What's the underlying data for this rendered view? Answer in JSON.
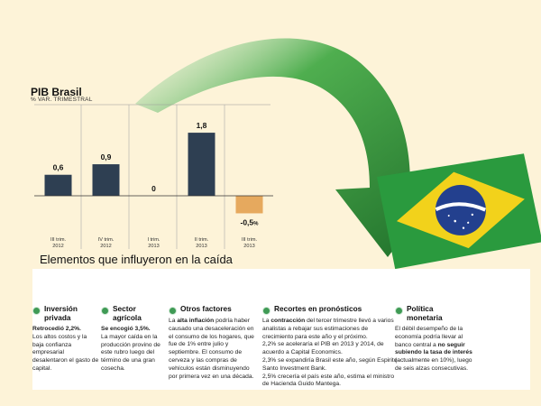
{
  "chart": {
    "title": "PIB Brasil",
    "subtitle": "% VAR. TRIMESTRAL"
  },
  "chart_data": {
    "type": "bar",
    "title": "PIB Brasil",
    "subtitle": "% VAR. TRIMESTRAL",
    "categories": [
      {
        "line1": "III trim.",
        "line2": "2012"
      },
      {
        "line1": "IV trim.",
        "line2": "2012"
      },
      {
        "line1": "I trim.",
        "line2": "2013"
      },
      {
        "line1": "II trim.",
        "line2": "2013"
      },
      {
        "line1": "III trim.",
        "line2": "2013"
      }
    ],
    "values": [
      0.6,
      0.9,
      0,
      1.8,
      -0.5
    ],
    "labels": [
      "0,6",
      "0,9",
      "0",
      "1,8",
      "-0,5"
    ],
    "unit_suffix": "%",
    "ylim": [
      -0.9,
      2.6
    ],
    "grid": false,
    "colors": {
      "positive": "#2e3f52",
      "negative": "#e6a95e",
      "baseline": "#333333"
    }
  },
  "section_title": "Elementos que influyeron en la caída",
  "factors": [
    {
      "icon": "dollar-icon",
      "name": [
        "Inversión",
        "privada"
      ],
      "lead": "Retrocedió 2,2%.",
      "text": "Los altos costos y la baja confianza empresarial desalentaron el gasto de capital."
    },
    {
      "icon": "wheat-icon",
      "name": [
        "Sector",
        "agrícola"
      ],
      "lead": "Se encogió 3,5%.",
      "text": "La mayor caída en la producción provino de este rubro luego del término de una gran cosecha."
    },
    {
      "icon": "shopping-cart-icon",
      "name": [
        "Otros factores"
      ],
      "lead_pre": "La",
      "lead": "alta inflación",
      "text": "podría haber causado una desaceleración en el consumo de los hogares, que fue de 1% entre julio y septiembre. El consumo de cerveza y las compras de vehículos están disminuyendo por primera vez en una década."
    },
    {
      "icon": "down-arrows-icon",
      "name": [
        "Recortes en pronósticos"
      ],
      "lead_pre": "La",
      "lead": "contracción",
      "text": "del tercer trimestre llevó a varios analistas a rebajar sus estimaciones de crecimiento para este año y el próximo.",
      "extra": [
        "2,2% se aceleraría el PIB en 2013 y 2014, de acuerdo a Capital Economics.",
        "2,3% se expandiría Brasil este año, según Espirito Santo Investment Bank.",
        "2,5% crecería el país este año, estima el ministro de Hacienda Guido Mantega."
      ]
    },
    {
      "icon": "turn-arrow-icon",
      "name": [
        "Política",
        "monetaria"
      ],
      "text_pre": "El débil desempeño de la economía podría llevar al banco central a",
      "lead": "no seguir subiendo la tasa de interés",
      "text": "(actualmente en 10%), luego de seis alzas consecutivas."
    }
  ],
  "flag": {
    "motto": "ORDEM E PROGRESSO",
    "colors": {
      "green": "#2a9a3e",
      "yellow": "#f2d21b",
      "blue": "#23408e"
    }
  },
  "colors": {
    "arrow": "#2f8f3a",
    "background": "#fdf3d8"
  }
}
